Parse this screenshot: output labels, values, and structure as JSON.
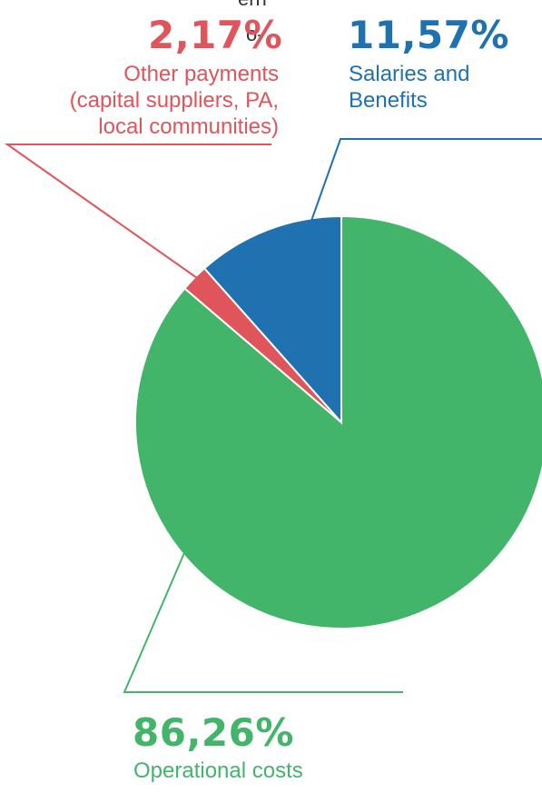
{
  "text_fragments": [
    "ern",
    "o-"
  ],
  "chart_data": {
    "type": "pie",
    "start": "12 o'clock",
    "direction": "clockwise",
    "slices": [
      {
        "label_lines": [
          "Operational costs"
        ],
        "value": 86.26,
        "value_label": "86,26%",
        "color": "#42B56A"
      },
      {
        "label_lines": [
          "Other payments",
          "(capital suppliers, PA,",
          "local communities)"
        ],
        "value": 2.17,
        "value_label": "2,17%",
        "color": "#E0545B"
      },
      {
        "label_lines": [
          "Salaries and",
          "Benefits"
        ],
        "value": 11.57,
        "value_label": "11,57%",
        "color": "#1F71B0"
      }
    ]
  }
}
